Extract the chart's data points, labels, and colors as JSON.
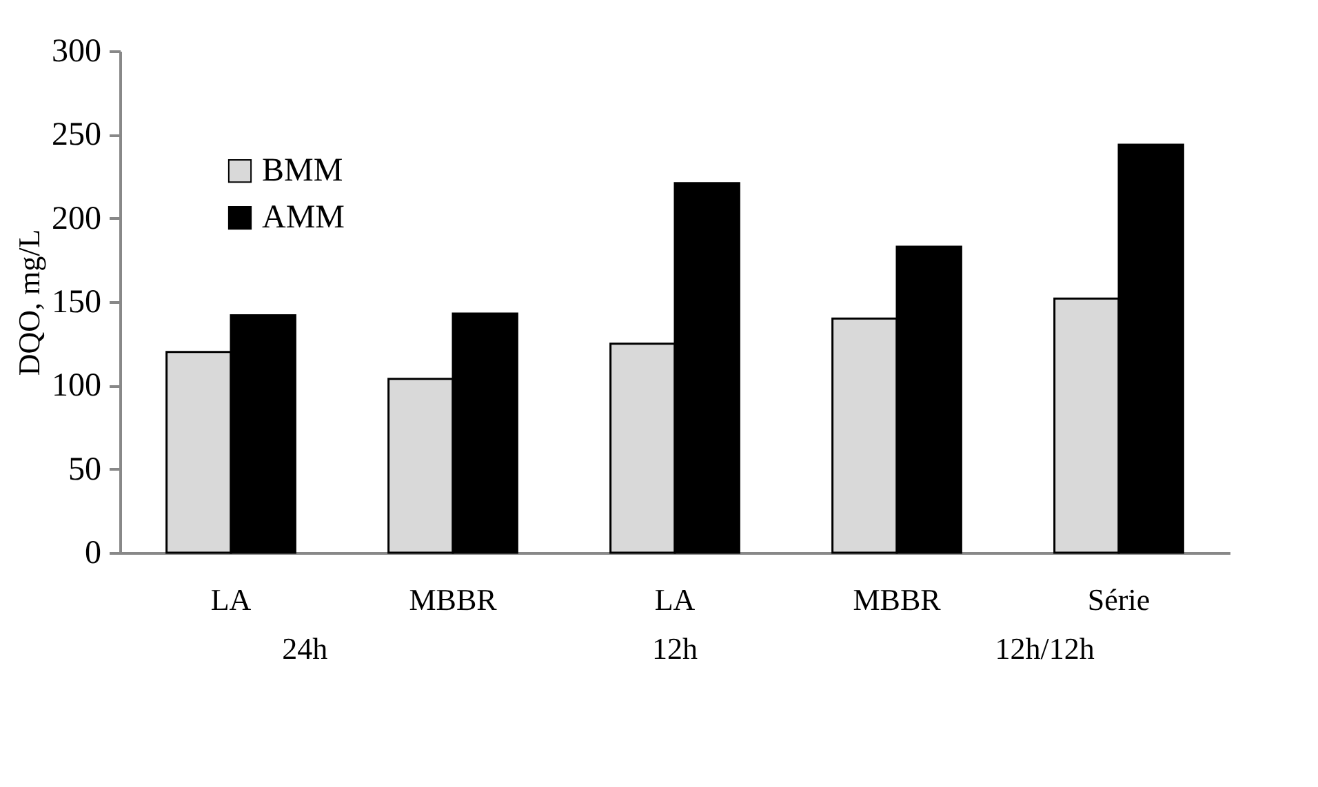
{
  "chart_data": {
    "type": "bar",
    "ylabel": "DQO, mg/L",
    "categories": [
      "LA",
      "MBBR",
      "LA",
      "MBBR",
      "Série"
    ],
    "series": [
      {
        "name": "BMM",
        "color": "#d9d9d9",
        "values": [
          120,
          104,
          125,
          140,
          152
        ]
      },
      {
        "name": "AMM",
        "color": "#000000",
        "values": [
          142,
          143,
          221,
          183,
          244
        ]
      }
    ],
    "ylim": [
      0,
      300
    ],
    "yticks": [
      0,
      50,
      100,
      150,
      200,
      250,
      300
    ],
    "legend": "top left",
    "annotations": [
      "24h",
      "12h",
      "12h/12h"
    ]
  }
}
